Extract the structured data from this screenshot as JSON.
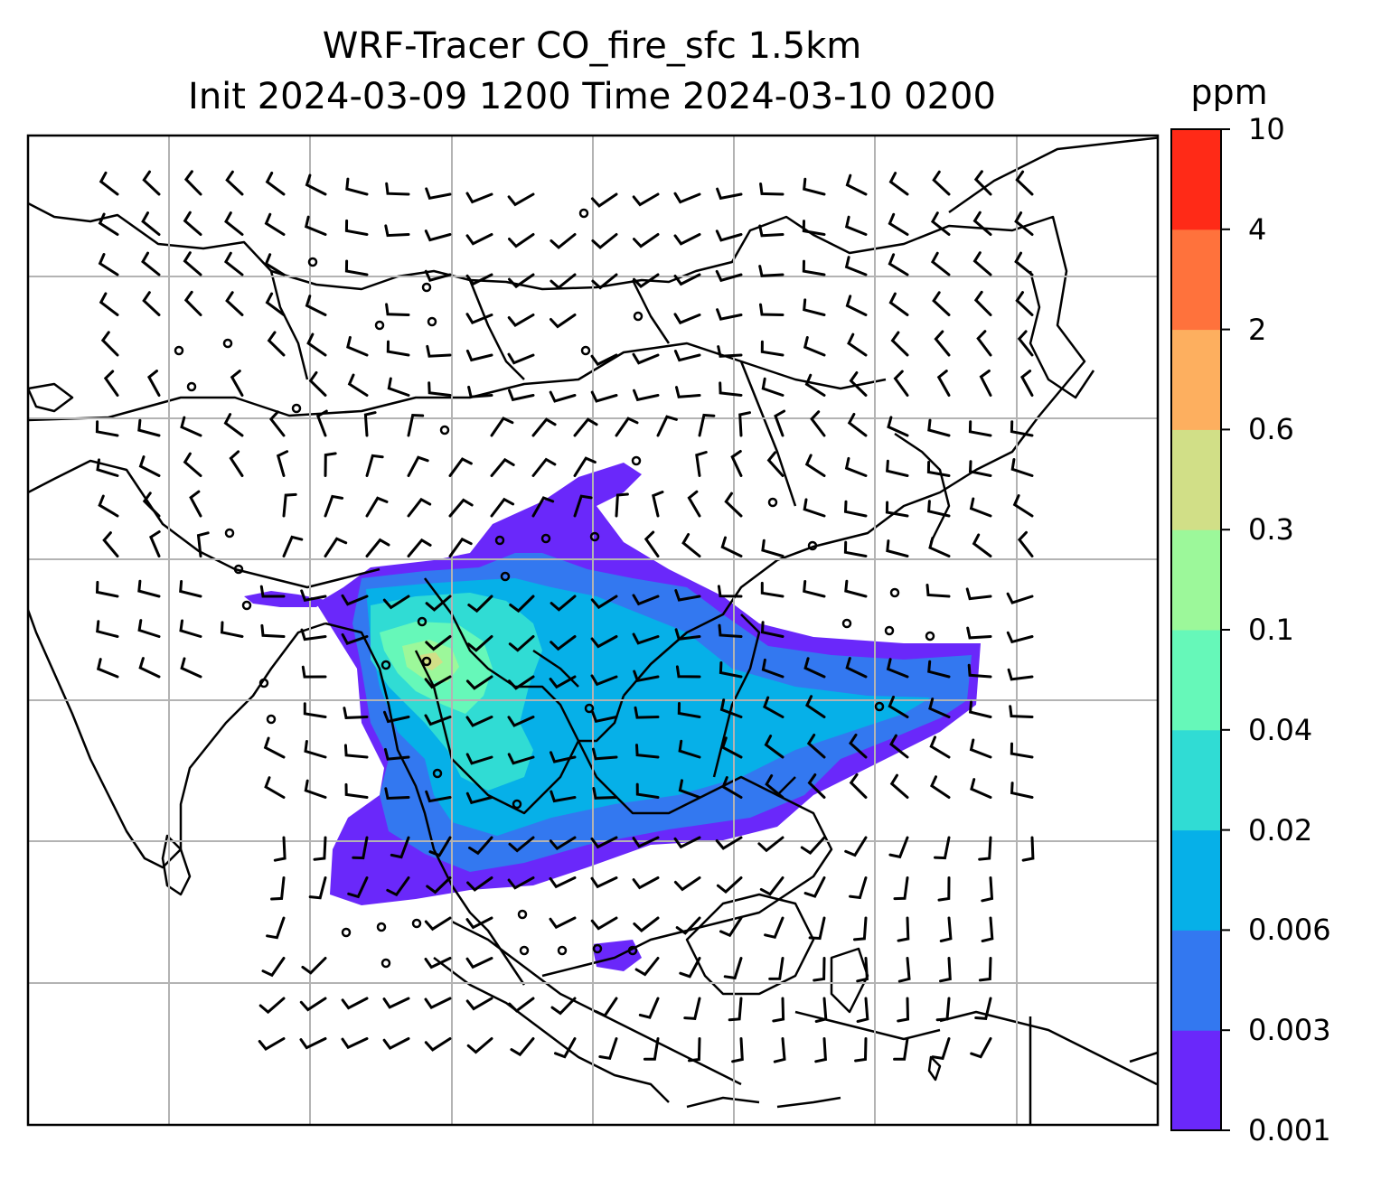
{
  "figure": {
    "title_line1": "WRF-Tracer CO_fire_sfc 1.5km",
    "title_line2": "Init 2024-03-09 1200 Time 2024-03-10 0200"
  },
  "colorbar": {
    "unit": "ppm",
    "levels": [
      "0.001",
      "0.003",
      "0.006",
      "0.02",
      "0.04",
      "0.1",
      "0.3",
      "0.6",
      "2",
      "4",
      "10"
    ],
    "colors": [
      "#6a28fa",
      "#3378f0",
      "#06b0e8",
      "#30dcd4",
      "#66f8b9",
      "#9cf89a",
      "#d1df87",
      "#fdaf5f",
      "#ff723c",
      "#ff2a17"
    ]
  },
  "map": {
    "gridline_color": "#b3b3b3",
    "coastline_color": "#000000",
    "wind_barb_color": "#000000"
  }
}
